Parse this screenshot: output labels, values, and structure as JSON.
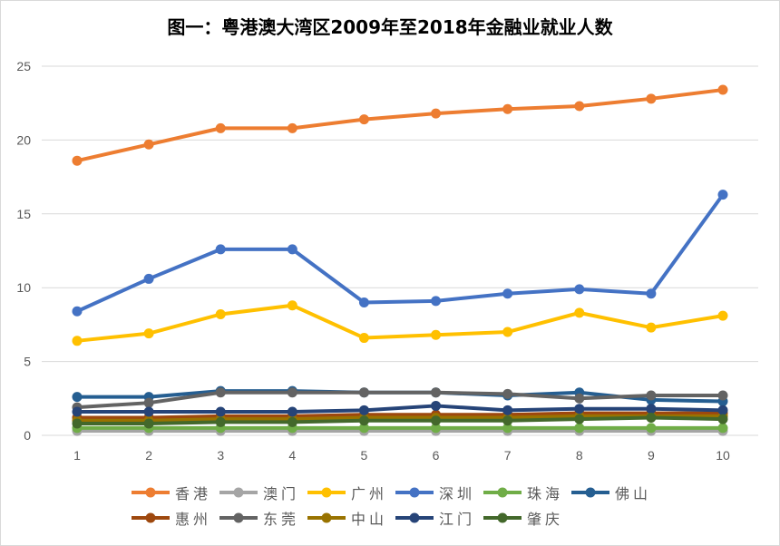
{
  "chart_data": {
    "type": "line",
    "title": "图一：粤港澳大湾区2009年至2018年金融业就业人数",
    "xlabel": "",
    "ylabel": "",
    "x": [
      1,
      2,
      3,
      4,
      5,
      6,
      7,
      8,
      9,
      10
    ],
    "ylim": [
      0,
      25
    ],
    "yticks": [
      0,
      5,
      10,
      15,
      20,
      25
    ],
    "grid": true,
    "legend_position": "bottom",
    "series": [
      {
        "name": "香港",
        "color": "#ED7D31",
        "values": [
          18.6,
          19.7,
          20.8,
          20.8,
          21.4,
          21.8,
          22.1,
          22.3,
          22.8,
          23.4
        ]
      },
      {
        "name": "澳门",
        "color": "#A5A5A5",
        "values": [
          0.3,
          0.3,
          0.3,
          0.3,
          0.3,
          0.3,
          0.3,
          0.3,
          0.3,
          0.3
        ]
      },
      {
        "name": "广州",
        "color": "#FFC000",
        "values": [
          6.4,
          6.9,
          8.2,
          8.8,
          6.6,
          6.8,
          7.0,
          8.3,
          7.3,
          8.1
        ]
      },
      {
        "name": "深圳",
        "color": "#4472C4",
        "values": [
          8.4,
          10.6,
          12.6,
          12.6,
          9.0,
          9.1,
          9.6,
          9.9,
          9.6,
          16.3
        ]
      },
      {
        "name": "珠海",
        "color": "#70AD47",
        "values": [
          0.5,
          0.5,
          0.5,
          0.5,
          0.5,
          0.5,
          0.5,
          0.5,
          0.5,
          0.5
        ]
      },
      {
        "name": "佛山",
        "color": "#255E91",
        "values": [
          2.6,
          2.6,
          3.0,
          3.0,
          2.9,
          2.9,
          2.7,
          2.9,
          2.4,
          2.3
        ]
      },
      {
        "name": "惠州",
        "color": "#9E480E",
        "values": [
          1.2,
          1.2,
          1.3,
          1.3,
          1.4,
          1.4,
          1.4,
          1.5,
          1.5,
          1.5
        ]
      },
      {
        "name": "东莞",
        "color": "#636363",
        "values": [
          1.9,
          2.2,
          2.9,
          2.9,
          2.9,
          2.9,
          2.8,
          2.5,
          2.7,
          2.7
        ]
      },
      {
        "name": "中山",
        "color": "#997300",
        "values": [
          1.0,
          1.0,
          1.1,
          1.1,
          1.2,
          1.2,
          1.2,
          1.3,
          1.3,
          1.3
        ]
      },
      {
        "name": "江门",
        "color": "#264478",
        "values": [
          1.6,
          1.6,
          1.6,
          1.6,
          1.7,
          2.0,
          1.7,
          1.8,
          1.8,
          1.7
        ]
      },
      {
        "name": "肇庆",
        "color": "#43682B",
        "values": [
          0.8,
          0.8,
          0.9,
          0.9,
          1.0,
          1.0,
          1.0,
          1.1,
          1.2,
          1.1
        ]
      }
    ]
  }
}
